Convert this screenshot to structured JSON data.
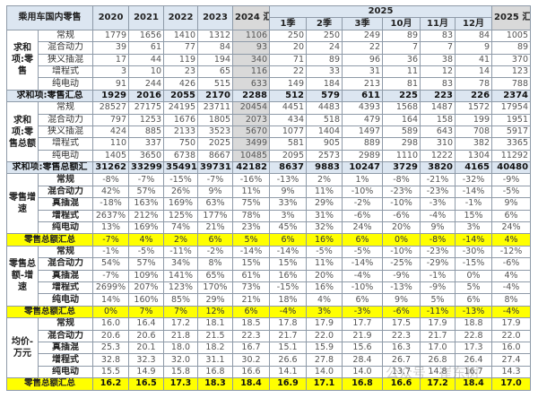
{
  "header": {
    "title": "乘用车国内零售",
    "years": [
      "2020",
      "2021",
      "2022",
      "2023",
      "2024 汇总"
    ],
    "group_2025": "2025",
    "periods_2025": [
      "1季",
      "2季",
      "3季",
      "10月",
      "11月",
      "12月"
    ],
    "total_2025": "2025 汇总"
  },
  "sections": [
    {
      "group": "求和项:零售",
      "style": "num",
      "shade2024": true,
      "rows": [
        {
          "label": "常规",
          "values": [
            "1779",
            "1656",
            "1410",
            "1312",
            "1106",
            "250",
            "250",
            "249",
            "89",
            "83",
            "84",
            "1005"
          ]
        },
        {
          "label": "混合动力",
          "values": [
            "39",
            "61",
            "77",
            "84",
            "93",
            "20",
            "24",
            "22",
            "7",
            "7",
            "9",
            "89"
          ]
        },
        {
          "label": "狭义插混",
          "values": [
            "17",
            "44",
            "119",
            "194",
            "340",
            "71",
            "89",
            "96",
            "36",
            "38",
            "41",
            "370"
          ]
        },
        {
          "label": "增程式",
          "values": [
            "3",
            "10",
            "23",
            "65",
            "116",
            "22",
            "33",
            "31",
            "11",
            "12",
            "14",
            "123"
          ]
        },
        {
          "label": "纯电动",
          "values": [
            "91",
            "244",
            "426",
            "515",
            "633",
            "149",
            "184",
            "213",
            "81",
            "83",
            "78",
            "788"
          ]
        }
      ],
      "summary": {
        "label": "求和项:零售汇总",
        "values": [
          "1929",
          "2016",
          "2055",
          "2170",
          "2288",
          "512",
          "579",
          "611",
          "225",
          "223",
          "226",
          "2374"
        ]
      }
    },
    {
      "group": "求和项:零售总额",
      "style": "num",
      "shade2024": true,
      "rows": [
        {
          "label": "常规",
          "values": [
            "28527",
            "27175",
            "24195",
            "23711",
            "20454",
            "4451",
            "4483",
            "4393",
            "1568",
            "1487",
            "1572",
            "17954"
          ]
        },
        {
          "label": "混合动力",
          "values": [
            "797",
            "1253",
            "1676",
            "1805",
            "2073",
            "434",
            "518",
            "479",
            "164",
            "158",
            "199",
            "1951"
          ]
        },
        {
          "label": "狭义插混",
          "values": [
            "424",
            "885",
            "2133",
            "3523",
            "5670",
            "1077",
            "1404",
            "1497",
            "589",
            "643",
            "708",
            "5917"
          ]
        },
        {
          "label": "增程式",
          "values": [
            "110",
            "337",
            "750",
            "2025",
            "3499",
            "581",
            "905",
            "889",
            "298",
            "310",
            "382",
            "3365"
          ]
        },
        {
          "label": "纯电动",
          "values": [
            "1405",
            "3650",
            "6738",
            "8667",
            "10485",
            "2095",
            "2573",
            "2989",
            "1110",
            "1222",
            "1304",
            "11292"
          ]
        }
      ],
      "summary": {
        "label": "求和项:零售总额汇",
        "values": [
          "31262",
          "33299",
          "35491",
          "39731",
          "42182",
          "8637",
          "9883",
          "10247",
          "3729",
          "3820",
          "4165",
          "40480"
        ]
      }
    },
    {
      "group": "零售增速",
      "style": "pct",
      "rows": [
        {
          "label": "常规",
          "values": [
            "-8%",
            "-7%",
            "-15%",
            "-7%",
            "-16%",
            "-13%",
            "2%",
            "1%",
            "-8%",
            "-21%",
            "-32%",
            "-9%"
          ]
        },
        {
          "label": "混合动力",
          "values": [
            "42%",
            "57%",
            "26%",
            "9%",
            "11%",
            "9%",
            "11%",
            "-10%",
            "-23%",
            "-23%",
            "-14%",
            "-5%"
          ]
        },
        {
          "label": "真插混",
          "values": [
            "-18%",
            "163%",
            "169%",
            "63%",
            "75%",
            "33%",
            "29%",
            "-2%",
            "-10%",
            "-3%",
            "-1%",
            "9%"
          ]
        },
        {
          "label": "增程式",
          "values": [
            "2637%",
            "212%",
            "125%",
            "177%",
            "78%",
            "3%",
            "31%",
            "-6%",
            "-6%",
            "-4%",
            "15%",
            "6%"
          ]
        },
        {
          "label": "纯电动",
          "values": [
            "13%",
            "169%",
            "74%",
            "21%",
            "23%",
            "45%",
            "32%",
            "24%",
            "20%",
            "9%",
            "3%",
            "24%"
          ]
        }
      ],
      "summary": {
        "label": "零售总额汇总",
        "values": [
          "-7%",
          "4%",
          "2%",
          "6%",
          "5%",
          "6%",
          "16%",
          "6%",
          "0%",
          "-8%",
          "-14%",
          "4%"
        ]
      }
    },
    {
      "group": "零售总额-增速",
      "style": "pct",
      "rows": [
        {
          "label": "常规",
          "values": [
            "-1%",
            "-5%",
            "-11%",
            "-2%",
            "-14%",
            "-14%",
            "-5%",
            "-5%",
            "-10%",
            "-23%",
            "-30%",
            "-12%"
          ]
        },
        {
          "label": "混合动力",
          "values": [
            "54%",
            "57%",
            "34%",
            "8%",
            "15%",
            "15%",
            "11%",
            "-14%",
            "-25%",
            "-29%",
            "-15%",
            "-6%"
          ]
        },
        {
          "label": "真插混",
          "values": [
            "-7%",
            "109%",
            "141%",
            "65%",
            "61%",
            "16%",
            "20%",
            "-4%",
            "-9%",
            "-1%",
            "0%",
            "4%"
          ]
        },
        {
          "label": "增程式",
          "values": [
            "2699%",
            "207%",
            "123%",
            "170%",
            "73%",
            "-15%",
            "16%",
            "-10%",
            "-13%",
            "-9%",
            "5%",
            "-4%"
          ]
        },
        {
          "label": "纯电动",
          "values": [
            "14%",
            "160%",
            "85%",
            "29%",
            "21%",
            "18%",
            "4%",
            "6%",
            "9%",
            "5%",
            "6%",
            "8%"
          ]
        }
      ],
      "summary": {
        "label": "零售总额汇总",
        "values": [
          "0%",
          "7%",
          "7%",
          "12%",
          "6%",
          "-4%",
          "3%",
          "-3%",
          "-6%",
          "-11%",
          "-13%",
          "-4%"
        ]
      }
    },
    {
      "group": "均价-万元",
      "style": "avg",
      "rows": [
        {
          "label": "常规",
          "values": [
            "16.0",
            "16.4",
            "17.2",
            "18.1",
            "18.5",
            "17.8",
            "17.9",
            "17.7",
            "17.5",
            "17.9",
            "18.8",
            "17.9"
          ]
        },
        {
          "label": "混合动力",
          "values": [
            "20.6",
            "20.6",
            "21.8",
            "21.5",
            "22.3",
            "21.7",
            "22.0",
            "21.9",
            "22.3",
            "21.7",
            "22.8",
            "22.0"
          ]
        },
        {
          "label": "真插混",
          "values": [
            "25.3",
            "20.1",
            "18.0",
            "18.2",
            "16.7",
            "15.1",
            "15.9",
            "15.6",
            "16.3",
            "17.0",
            "17.3",
            "16.0"
          ]
        },
        {
          "label": "增程式",
          "values": [
            "32.8",
            "32.3",
            "32.0",
            "31.1",
            "30.2",
            "26.6",
            "27.8",
            "28.4",
            "26.7",
            "26.8",
            "26.4",
            "27.4"
          ]
        },
        {
          "label": "纯电动",
          "values": [
            "15.5",
            "14.9",
            "15.8",
            "16.8",
            "16.6",
            "14.1",
            "14.0",
            "14.0",
            "13.7",
            "14.8",
            "16.7",
            "14.3"
          ]
        }
      ],
      "summary": {
        "label": "零售总额汇总",
        "values": [
          "16.2",
          "16.5",
          "17.3",
          "18.3",
          "18.4",
          "16.9",
          "17.1",
          "16.8",
          "16.6",
          "17.2",
          "18.4",
          "17.0"
        ]
      }
    }
  ],
  "colors": {
    "header": "#dce6f1",
    "highlight": "#ffff00",
    "shade": "#d9d9d9"
  },
  "watermark": "公众号 · 崔东树"
}
